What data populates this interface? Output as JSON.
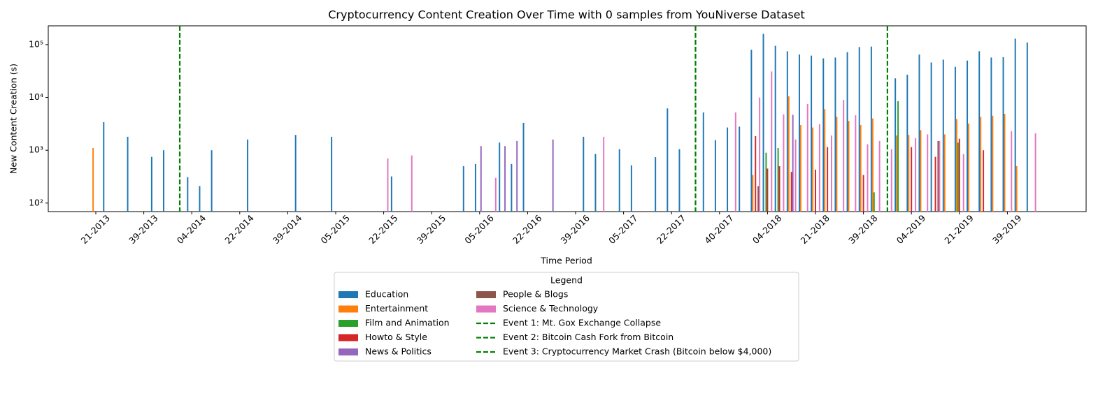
{
  "chart_data": {
    "type": "bar",
    "title": "Cryptocurrency Content Creation Over Time with 0 samples from YouNiverse Dataset",
    "x_label": "Time Period",
    "y_label": "New Content Creation (s)",
    "yscale": "log",
    "ylim": [
      69,
      227000
    ],
    "yticks": [
      {
        "value": 100,
        "label": "10²"
      },
      {
        "value": 1000,
        "label": "10³"
      },
      {
        "value": 10000,
        "label": "10⁴"
      },
      {
        "value": 100000,
        "label": "10⁵"
      }
    ],
    "legend_title": "Legend",
    "categories": [
      "21-2013",
      null,
      null,
      null,
      "39-2013",
      null,
      null,
      null,
      "04-2014",
      null,
      null,
      null,
      "22-2014",
      null,
      null,
      null,
      "39-2014",
      null,
      null,
      null,
      "05-2015",
      null,
      null,
      null,
      "22-2015",
      null,
      null,
      null,
      "39-2015",
      null,
      null,
      null,
      "05-2016",
      null,
      null,
      null,
      "22-2016",
      null,
      null,
      null,
      "39-2016",
      null,
      null,
      null,
      "05-2017",
      null,
      null,
      null,
      "22-2017",
      null,
      null,
      null,
      "40-2017",
      null,
      null,
      null,
      "04-2018",
      null,
      null,
      null,
      "21-2018",
      null,
      null,
      null,
      "39-2018",
      null,
      null,
      null,
      "04-2019",
      null,
      null,
      null,
      "21-2019",
      null,
      null,
      null,
      "39-2019",
      null,
      null
    ],
    "series": [
      {
        "name": "Education",
        "color": "#1f77b4",
        "values": [
          null,
          3400,
          null,
          1800,
          null,
          750,
          1000,
          null,
          310,
          210,
          1000,
          null,
          null,
          1600,
          null,
          null,
          null,
          1950,
          null,
          null,
          1800,
          null,
          null,
          null,
          null,
          320,
          null,
          null,
          null,
          null,
          null,
          500,
          550,
          null,
          1400,
          550,
          3300,
          null,
          null,
          null,
          null,
          1800,
          850,
          null,
          1050,
          520,
          null,
          740,
          6200,
          1050,
          null,
          5200,
          1550,
          2700,
          2800,
          80000,
          160000,
          95000,
          75000,
          65000,
          62000,
          55000,
          57000,
          72000,
          90000,
          92000,
          null,
          23000,
          27000,
          65000,
          46000,
          52000,
          38000,
          50000,
          75000,
          57000,
          58000,
          130000,
          110000
        ]
      },
      {
        "name": "Entertainment",
        "color": "#ff7f0e",
        "values": [
          1100,
          null,
          null,
          null,
          null,
          null,
          null,
          null,
          null,
          null,
          null,
          null,
          null,
          null,
          null,
          null,
          null,
          null,
          null,
          null,
          null,
          null,
          null,
          null,
          null,
          null,
          null,
          null,
          null,
          null,
          null,
          null,
          null,
          null,
          null,
          null,
          null,
          null,
          null,
          null,
          null,
          null,
          null,
          null,
          null,
          null,
          null,
          null,
          null,
          null,
          null,
          null,
          null,
          null,
          null,
          340,
          null,
          null,
          10500,
          3000,
          2700,
          6000,
          4300,
          3600,
          3000,
          4000,
          null,
          1900,
          1950,
          2400,
          null,
          2000,
          3900,
          3200,
          4300,
          4500,
          4900,
          500,
          null
        ]
      },
      {
        "name": "Film and Animation",
        "color": "#2ca02c",
        "values": [
          null,
          null,
          null,
          null,
          null,
          null,
          null,
          null,
          null,
          null,
          null,
          null,
          null,
          null,
          null,
          null,
          null,
          null,
          null,
          null,
          null,
          null,
          null,
          null,
          null,
          null,
          null,
          null,
          null,
          null,
          null,
          null,
          null,
          null,
          null,
          null,
          null,
          null,
          null,
          null,
          null,
          null,
          null,
          null,
          null,
          null,
          null,
          null,
          null,
          null,
          null,
          null,
          null,
          null,
          null,
          null,
          900,
          1100,
          null,
          null,
          null,
          null,
          null,
          null,
          null,
          160,
          null,
          8500,
          null,
          null,
          null,
          null,
          1400,
          null,
          null,
          null,
          null,
          null,
          null
        ]
      },
      {
        "name": "Howto & Style",
        "color": "#d62728",
        "values": [
          null,
          null,
          null,
          null,
          null,
          null,
          null,
          null,
          null,
          null,
          null,
          null,
          null,
          null,
          null,
          null,
          null,
          null,
          null,
          null,
          null,
          null,
          null,
          null,
          null,
          null,
          null,
          null,
          null,
          null,
          null,
          null,
          null,
          null,
          null,
          null,
          null,
          null,
          null,
          null,
          null,
          null,
          null,
          null,
          null,
          null,
          null,
          null,
          null,
          null,
          null,
          null,
          null,
          null,
          null,
          1850,
          450,
          500,
          390,
          null,
          430,
          1150,
          null,
          null,
          340,
          null,
          null,
          null,
          1150,
          null,
          750,
          null,
          1650,
          null,
          1000,
          null,
          null,
          null,
          null
        ]
      },
      {
        "name": "News & Politics",
        "color": "#9467bd",
        "values": [
          null,
          null,
          null,
          null,
          null,
          null,
          null,
          null,
          null,
          null,
          null,
          null,
          null,
          null,
          null,
          null,
          null,
          null,
          null,
          null,
          null,
          null,
          null,
          null,
          null,
          null,
          null,
          null,
          null,
          null,
          null,
          null,
          1200,
          null,
          1200,
          1500,
          null,
          null,
          1600,
          null,
          null,
          null,
          null,
          null,
          null,
          null,
          null,
          null,
          null,
          null,
          null,
          null,
          null,
          null,
          null,
          null,
          null,
          null,
          4700,
          null,
          null,
          null,
          null,
          null,
          null,
          null,
          null,
          null,
          null,
          null,
          null,
          null,
          null,
          null,
          null,
          null,
          null,
          null,
          null
        ]
      },
      {
        "name": "People & Blogs",
        "color": "#8c564b",
        "values": [
          null,
          null,
          null,
          null,
          null,
          null,
          null,
          null,
          null,
          null,
          null,
          null,
          null,
          null,
          null,
          null,
          null,
          null,
          null,
          null,
          null,
          null,
          null,
          null,
          null,
          null,
          null,
          null,
          null,
          null,
          null,
          null,
          null,
          null,
          null,
          null,
          null,
          null,
          null,
          null,
          null,
          null,
          null,
          null,
          null,
          null,
          null,
          null,
          null,
          null,
          null,
          null,
          null,
          null,
          null,
          210,
          null,
          null,
          null,
          null,
          null,
          null,
          null,
          null,
          null,
          null,
          null,
          null,
          null,
          null,
          1500,
          null,
          null,
          null,
          null,
          null,
          null,
          null,
          null
        ]
      },
      {
        "name": "Science & Technology",
        "color": "#e377c2",
        "values": [
          null,
          null,
          null,
          null,
          null,
          null,
          null,
          null,
          null,
          null,
          null,
          null,
          null,
          null,
          null,
          null,
          null,
          null,
          null,
          null,
          null,
          null,
          null,
          null,
          700,
          null,
          800,
          null,
          null,
          null,
          null,
          null,
          null,
          300,
          null,
          null,
          null,
          null,
          null,
          null,
          null,
          null,
          1800,
          null,
          null,
          null,
          null,
          null,
          null,
          null,
          null,
          null,
          null,
          5200,
          null,
          10000,
          31000,
          4800,
          1600,
          7500,
          3100,
          1900,
          9000,
          4600,
          1300,
          1500,
          1050,
          null,
          1700,
          2000,
          1500,
          null,
          850,
          null,
          null,
          null,
          2300,
          null,
          2100
        ]
      }
    ],
    "events": [
      {
        "name": "Event 1: Mt. Gox Exchange Collapse",
        "x": 7,
        "color": "#008000"
      },
      {
        "name": "Event 2: Bitcoin Cash Fork from Bitcoin",
        "x": 50,
        "color": "#008000"
      },
      {
        "name": "Event 3: Cryptocurrency Market Crash (Bitcoin below $4,000)",
        "x": 66,
        "color": "#008000"
      }
    ]
  }
}
